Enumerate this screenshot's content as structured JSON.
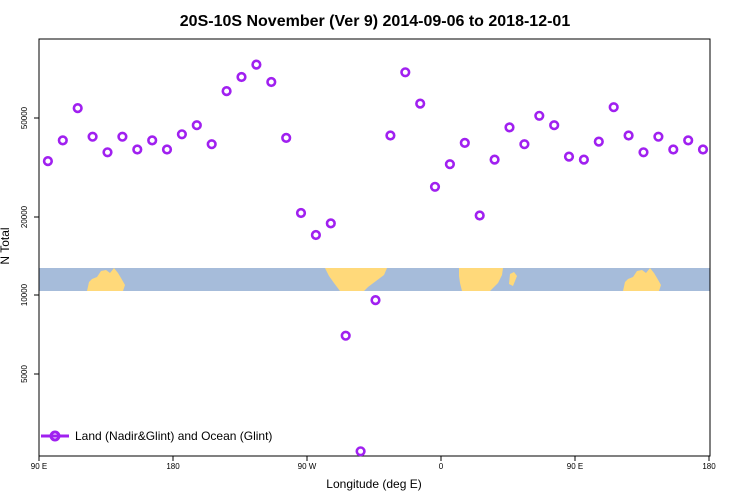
{
  "chart_data": {
    "type": "scatter",
    "title": "20S-10S November (Ver 9)   2014-09-06 to 2018-12-01",
    "xlabel": "Longitude (deg E)",
    "ylabel": "N Total",
    "x_axis_range_deg": [
      90,
      540
    ],
    "y_scale": "log",
    "y_range": [
      2200,
      110000
    ],
    "x_ticks": [
      {
        "value": 90,
        "label": "90 E"
      },
      {
        "value": 180,
        "label": "180"
      },
      {
        "value": 270,
        "label": "90 W"
      },
      {
        "value": 360,
        "label": "0"
      },
      {
        "value": 450,
        "label": "90 E"
      },
      {
        "value": 540,
        "label": "180"
      }
    ],
    "y_ticks": [
      {
        "value": 5000,
        "label": "5000"
      },
      {
        "value": 10000,
        "label": "10000"
      },
      {
        "value": 20000,
        "label": "20000"
      },
      {
        "value": 50000,
        "label": "50000"
      }
    ],
    "series": [
      {
        "name": "Land (Nadir&Glint) and Ocean (Glint)",
        "color": "#a020f0",
        "x": [
          96,
          106,
          116,
          126,
          136,
          146,
          156,
          166,
          176,
          186,
          196,
          206,
          216,
          226,
          236,
          246,
          256,
          266,
          276,
          286,
          296,
          306,
          316,
          326,
          336,
          346,
          356,
          366,
          376,
          386,
          396,
          406,
          416,
          426,
          436,
          446,
          456,
          466,
          476,
          486,
          496,
          506,
          516,
          526,
          536
        ],
        "y": [
          35000,
          42500,
          57500,
          44000,
          38000,
          44000,
          39000,
          42500,
          39000,
          45000,
          49000,
          41000,
          67500,
          77000,
          86500,
          73500,
          43500,
          21500,
          17500,
          19500,
          6800,
          2300,
          9500,
          44500,
          80500,
          60000,
          27500,
          34000,
          41500,
          21000,
          35500,
          48000,
          41000,
          53500,
          49000,
          36500,
          35500,
          42000,
          58000,
          44500,
          38000,
          44000,
          39000,
          42500,
          39000
        ]
      }
    ],
    "legend": {
      "position": "bottom-left",
      "label": "Land (Nadir&Glint) and Ocean (Glint)"
    },
    "map_strip": {
      "ocean_color": "#a6bcda",
      "land_color": "#ffd97a"
    }
  }
}
